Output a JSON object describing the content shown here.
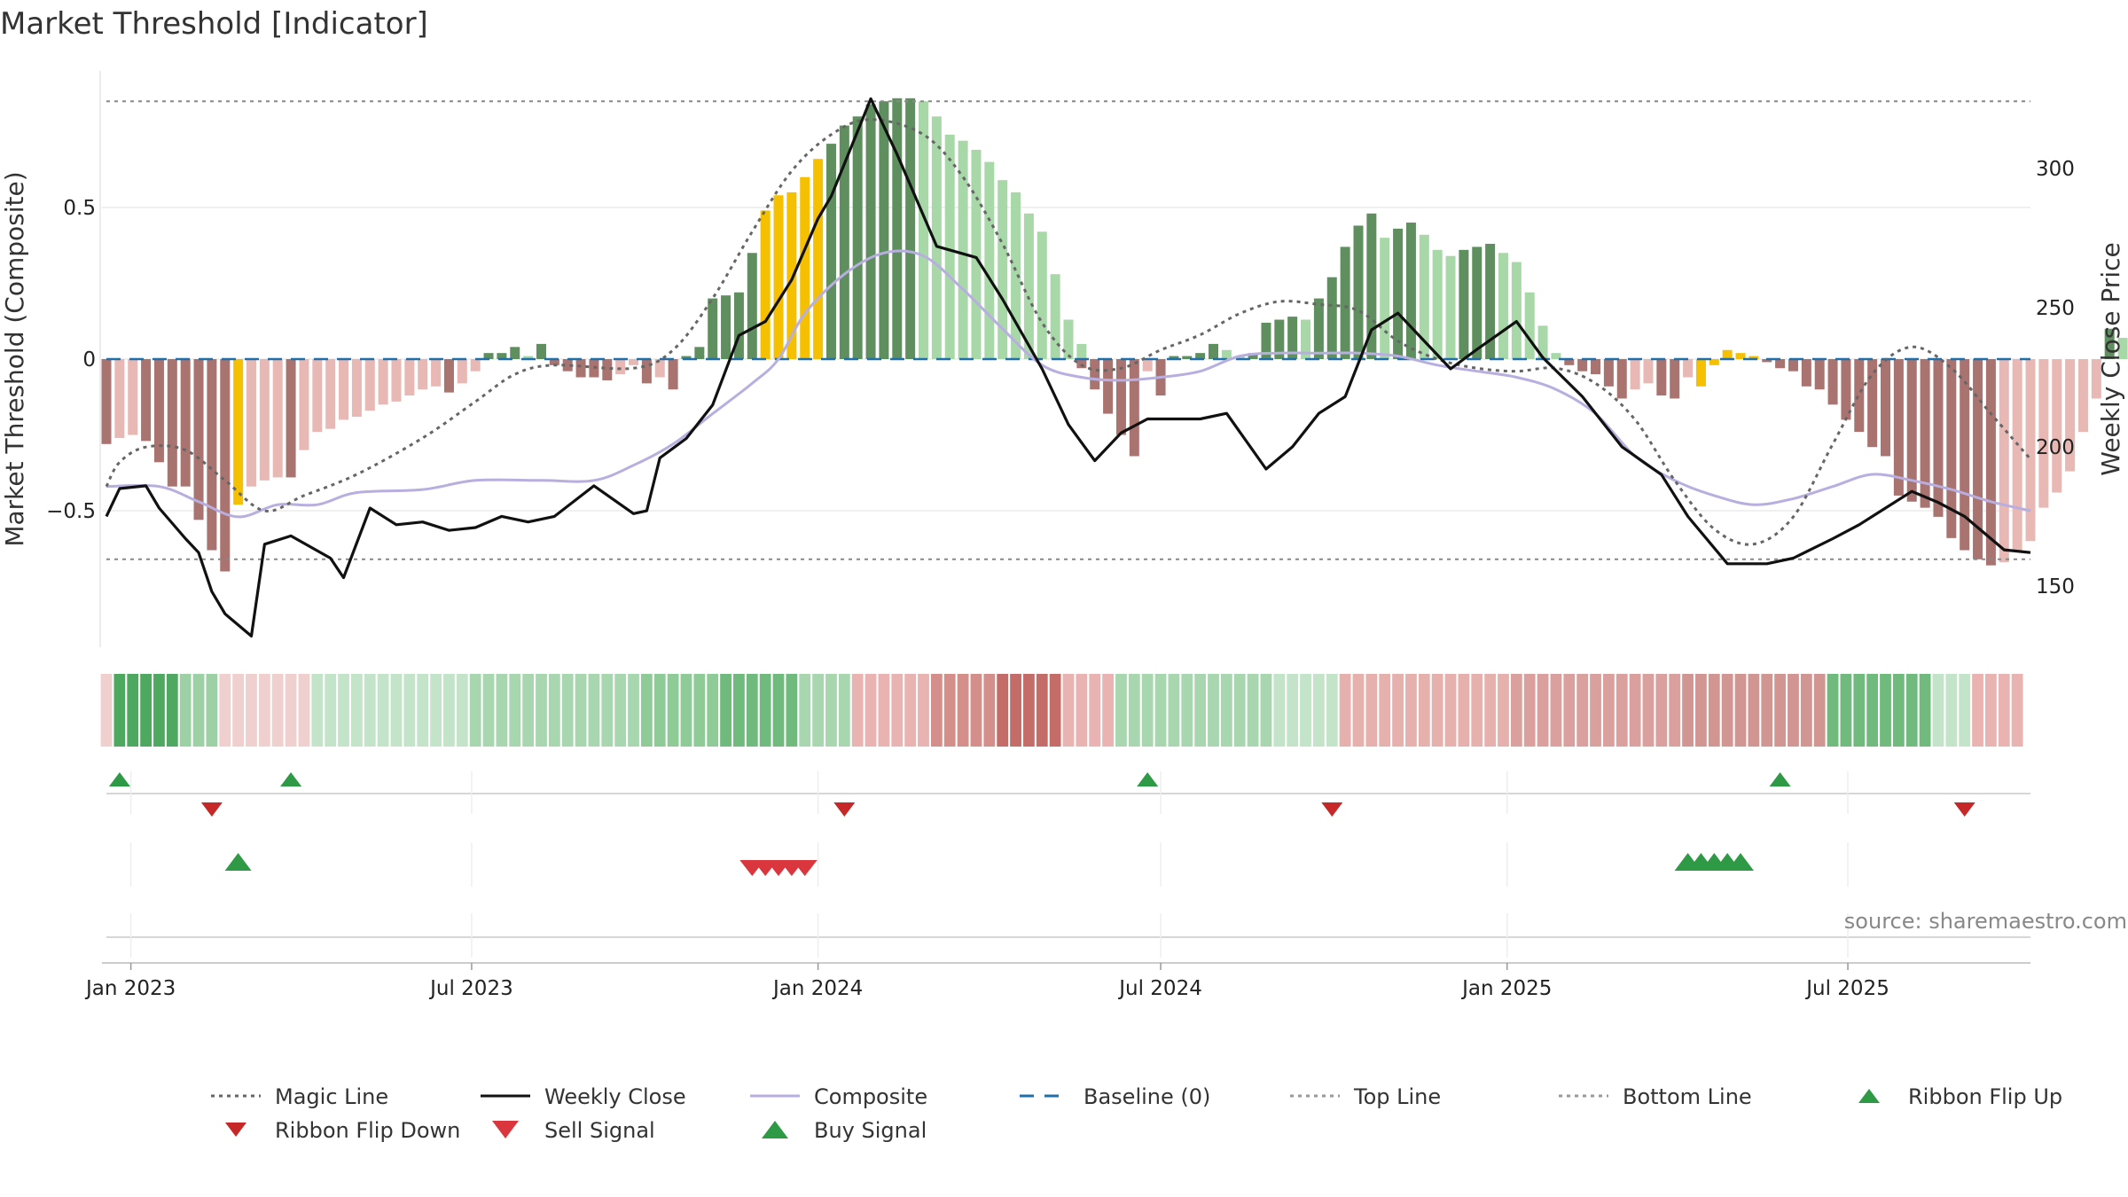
{
  "title": "Market Threshold [Indicator]",
  "source": "source: sharemaestro.com",
  "colors": {
    "bar_dark_green": "#5f8f5f",
    "bar_light_green": "#a8d8a8",
    "bar_dark_red": "#a97370",
    "bar_light_red": "#e8b8b4",
    "bar_extreme": "#f5c000",
    "weekly_close": "#111111",
    "composite": "#b8aee0",
    "magic": "#666666",
    "baseline": "#1f6fa8",
    "threshold": "#888888",
    "buy": "#2e9a46",
    "sell": "#d9363e"
  },
  "chart_data": {
    "type": "bar",
    "title": "Market Threshold [Indicator]",
    "ylabel_left": "Market Threshold (Composite)",
    "ylabel_right": "Weekly Close Price",
    "ylim_left": [
      -0.95,
      0.95
    ],
    "ylim_right": [
      128,
      335
    ],
    "yticks_left": [
      {
        "v": 0.5,
        "label": "0.5"
      },
      {
        "v": 0,
        "label": "0"
      },
      {
        "v": -0.5,
        "label": "−0.5"
      }
    ],
    "yticks_right": [
      {
        "v": 300,
        "label": "300"
      },
      {
        "v": 250,
        "label": "250"
      },
      {
        "v": 200,
        "label": "200"
      },
      {
        "v": 150,
        "label": "150"
      }
    ],
    "top_line": 0.85,
    "bottom_line": -0.66,
    "x_start": "2022-12-19",
    "x_end": "2025-10-06",
    "xticks": [
      {
        "date": "2023-01-01",
        "label": "Jan 2023"
      },
      {
        "date": "2023-07-01",
        "label": "Jul 2023"
      },
      {
        "date": "2024-01-01",
        "label": "Jan 2024"
      },
      {
        "date": "2024-07-01",
        "label": "Jul 2024"
      },
      {
        "date": "2025-01-01",
        "label": "Jan 2025"
      },
      {
        "date": "2025-07-01",
        "label": "Jul 2025"
      }
    ],
    "weekly_close_anchors": [
      [
        "2022-12-19",
        175
      ],
      [
        "2022-12-26",
        185
      ],
      [
        "2023-01-09",
        186
      ],
      [
        "2023-01-16",
        178
      ],
      [
        "2023-01-30",
        167
      ],
      [
        "2023-02-06",
        162
      ],
      [
        "2023-02-13",
        148
      ],
      [
        "2023-02-20",
        140
      ],
      [
        "2023-03-06",
        132
      ],
      [
        "2023-03-13",
        165
      ],
      [
        "2023-03-27",
        168
      ],
      [
        "2023-04-17",
        160
      ],
      [
        "2023-04-24",
        153
      ],
      [
        "2023-05-08",
        178
      ],
      [
        "2023-05-22",
        172
      ],
      [
        "2023-06-05",
        173
      ],
      [
        "2023-06-19",
        170
      ],
      [
        "2023-07-03",
        171
      ],
      [
        "2023-07-17",
        175
      ],
      [
        "2023-07-31",
        173
      ],
      [
        "2023-08-14",
        175
      ],
      [
        "2023-09-04",
        186
      ],
      [
        "2023-09-25",
        176
      ],
      [
        "2023-10-02",
        177
      ],
      [
        "2023-10-09",
        196
      ],
      [
        "2023-10-23",
        203
      ],
      [
        "2023-11-06",
        215
      ],
      [
        "2023-11-20",
        240
      ],
      [
        "2023-12-04",
        245
      ],
      [
        "2023-12-18",
        260
      ],
      [
        "2024-01-01",
        282
      ],
      [
        "2024-01-08",
        290
      ],
      [
        "2024-01-29",
        325
      ],
      [
        "2024-02-12",
        305
      ],
      [
        "2024-03-04",
        272
      ],
      [
        "2024-03-25",
        268
      ],
      [
        "2024-04-08",
        253
      ],
      [
        "2024-04-29",
        228
      ],
      [
        "2024-05-13",
        208
      ],
      [
        "2024-05-27",
        195
      ],
      [
        "2024-06-10",
        205
      ],
      [
        "2024-06-24",
        210
      ],
      [
        "2024-07-08",
        210
      ],
      [
        "2024-07-22",
        210
      ],
      [
        "2024-08-05",
        212
      ],
      [
        "2024-08-26",
        192
      ],
      [
        "2024-09-09",
        200
      ],
      [
        "2024-09-23",
        212
      ],
      [
        "2024-10-07",
        218
      ],
      [
        "2024-10-21",
        242
      ],
      [
        "2024-11-04",
        248
      ],
      [
        "2024-11-18",
        238
      ],
      [
        "2024-12-02",
        228
      ],
      [
        "2024-12-16",
        235
      ],
      [
        "2025-01-06",
        245
      ],
      [
        "2025-01-20",
        232
      ],
      [
        "2025-02-10",
        218
      ],
      [
        "2025-03-03",
        200
      ],
      [
        "2025-03-24",
        190
      ],
      [
        "2025-04-07",
        175
      ],
      [
        "2025-04-28",
        158
      ],
      [
        "2025-05-19",
        158
      ],
      [
        "2025-06-02",
        160
      ],
      [
        "2025-06-23",
        167
      ],
      [
        "2025-07-07",
        172
      ],
      [
        "2025-07-21",
        178
      ],
      [
        "2025-08-04",
        184
      ],
      [
        "2025-08-18",
        180
      ],
      [
        "2025-09-01",
        175
      ],
      [
        "2025-09-22",
        163
      ],
      [
        "2025-10-06",
        162
      ]
    ],
    "composite_anchors": [
      [
        "2022-12-19",
        -0.42
      ],
      [
        "2023-01-16",
        -0.42
      ],
      [
        "2023-02-06",
        -0.47
      ],
      [
        "2023-02-27",
        -0.52
      ],
      [
        "2023-03-20",
        -0.48
      ],
      [
        "2023-04-10",
        -0.48
      ],
      [
        "2023-05-01",
        -0.44
      ],
      [
        "2023-06-05",
        -0.43
      ],
      [
        "2023-07-03",
        -0.4
      ],
      [
        "2023-08-07",
        -0.4
      ],
      [
        "2023-09-04",
        -0.4
      ],
      [
        "2023-09-25",
        -0.35
      ],
      [
        "2023-10-16",
        -0.28
      ],
      [
        "2023-11-06",
        -0.18
      ],
      [
        "2023-11-27",
        -0.08
      ],
      [
        "2023-12-11",
        0.0
      ],
      [
        "2023-12-25",
        0.15
      ],
      [
        "2024-01-15",
        0.28
      ],
      [
        "2024-02-05",
        0.35
      ],
      [
        "2024-02-26",
        0.34
      ],
      [
        "2024-03-18",
        0.23
      ],
      [
        "2024-04-08",
        0.1
      ],
      [
        "2024-04-29",
        -0.02
      ],
      [
        "2024-05-20",
        -0.06
      ],
      [
        "2024-06-10",
        -0.07
      ],
      [
        "2024-07-01",
        -0.06
      ],
      [
        "2024-07-22",
        -0.04
      ],
      [
        "2024-08-12",
        0.01
      ],
      [
        "2024-09-02",
        0.02
      ],
      [
        "2024-09-23",
        0.02
      ],
      [
        "2024-10-14",
        0.02
      ],
      [
        "2024-11-04",
        0.01
      ],
      [
        "2024-11-25",
        -0.02
      ],
      [
        "2024-12-16",
        -0.04
      ],
      [
        "2025-01-06",
        -0.06
      ],
      [
        "2025-01-27",
        -0.1
      ],
      [
        "2025-02-17",
        -0.18
      ],
      [
        "2025-03-10",
        -0.32
      ],
      [
        "2025-03-31",
        -0.4
      ],
      [
        "2025-04-21",
        -0.45
      ],
      [
        "2025-05-12",
        -0.48
      ],
      [
        "2025-06-02",
        -0.46
      ],
      [
        "2025-06-23",
        -0.42
      ],
      [
        "2025-07-14",
        -0.38
      ],
      [
        "2025-08-04",
        -0.4
      ],
      [
        "2025-08-25",
        -0.43
      ],
      [
        "2025-09-15",
        -0.47
      ],
      [
        "2025-10-06",
        -0.5
      ]
    ],
    "magic_anchors": [
      [
        "2022-12-19",
        -0.42
      ],
      [
        "2022-12-26",
        -0.34
      ],
      [
        "2023-01-09",
        -0.29
      ],
      [
        "2023-01-30",
        -0.3
      ],
      [
        "2023-02-20",
        -0.4
      ],
      [
        "2023-03-13",
        -0.5
      ],
      [
        "2023-04-03",
        -0.45
      ],
      [
        "2023-05-01",
        -0.38
      ],
      [
        "2023-06-05",
        -0.26
      ],
      [
        "2023-07-03",
        -0.14
      ],
      [
        "2023-07-24",
        -0.05
      ],
      [
        "2023-08-14",
        -0.02
      ],
      [
        "2023-09-25",
        -0.03
      ],
      [
        "2023-10-16",
        0.03
      ],
      [
        "2023-11-06",
        0.2
      ],
      [
        "2023-11-27",
        0.42
      ],
      [
        "2023-12-18",
        0.62
      ],
      [
        "2024-01-08",
        0.74
      ],
      [
        "2024-01-29",
        0.79
      ],
      [
        "2024-02-26",
        0.74
      ],
      [
        "2024-03-18",
        0.6
      ],
      [
        "2024-04-08",
        0.38
      ],
      [
        "2024-04-29",
        0.12
      ],
      [
        "2024-05-20",
        -0.02
      ],
      [
        "2024-06-10",
        -0.03
      ],
      [
        "2024-07-01",
        0.03
      ],
      [
        "2024-07-22",
        0.08
      ],
      [
        "2024-08-12",
        0.15
      ],
      [
        "2024-09-02",
        0.19
      ],
      [
        "2024-09-23",
        0.18
      ],
      [
        "2024-10-14",
        0.16
      ],
      [
        "2024-11-04",
        0.06
      ],
      [
        "2024-11-25",
        0.0
      ],
      [
        "2024-12-16",
        -0.03
      ],
      [
        "2025-01-06",
        -0.04
      ],
      [
        "2025-01-27",
        -0.03
      ],
      [
        "2025-02-17",
        -0.08
      ],
      [
        "2025-03-10",
        -0.2
      ],
      [
        "2025-03-31",
        -0.4
      ],
      [
        "2025-04-21",
        -0.56
      ],
      [
        "2025-05-12",
        -0.61
      ],
      [
        "2025-06-02",
        -0.52
      ],
      [
        "2025-06-23",
        -0.28
      ],
      [
        "2025-07-14",
        -0.05
      ],
      [
        "2025-08-04",
        0.04
      ],
      [
        "2025-08-25",
        -0.03
      ],
      [
        "2025-09-15",
        -0.18
      ],
      [
        "2025-10-06",
        -0.33
      ]
    ],
    "bar_segments": [
      {
        "from": "2022-12-19",
        "values": [
          -0.28,
          -0.26,
          -0.25,
          -0.27,
          -0.34,
          -0.42,
          -0.42,
          -0.53,
          -0.63,
          -0.7,
          -0.48,
          -0.42,
          -0.4,
          -0.39,
          -0.39,
          -0.3,
          -0.24,
          -0.23,
          -0.2,
          -0.19,
          -0.17,
          -0.15,
          -0.14,
          -0.12,
          -0.1,
          -0.09,
          -0.11,
          -0.08,
          -0.04,
          0.02,
          0.02,
          0.04,
          0.01,
          0.05,
          -0.02,
          -0.04,
          -0.06,
          -0.06,
          -0.07,
          -0.05,
          -0.02,
          -0.08,
          -0.06,
          -0.1,
          0.01,
          0.04,
          0.2,
          0.21,
          0.22,
          0.35,
          0.49,
          0.54,
          0.55,
          0.6,
          0.66,
          0.71,
          0.77,
          0.8,
          0.84,
          0.85,
          0.86,
          0.86,
          0.85,
          0.8,
          0.74,
          0.72,
          0.69,
          0.65,
          0.59,
          0.55,
          0.48,
          0.42,
          0.28,
          0.13,
          0.05
        ]
      },
      {
        "from": "2024-05-20",
        "values": [
          -0.03,
          -0.1,
          -0.18,
          -0.25,
          -0.32,
          -0.04,
          -0.12,
          0.01,
          0.01,
          0.02,
          0.05,
          0.03,
          0.01,
          0.02,
          0.12,
          0.13,
          0.14,
          0.13,
          0.2,
          0.27,
          0.37,
          0.44,
          0.48,
          0.4,
          0.43,
          0.45,
          0.41,
          0.36,
          0.34,
          0.36,
          0.37,
          0.38,
          0.35,
          0.32,
          0.22,
          0.11,
          0.02,
          -0.02,
          -0.04,
          -0.05,
          -0.09,
          -0.13,
          -0.1,
          -0.08,
          -0.12,
          -0.13,
          -0.06,
          -0.09,
          -0.02,
          0.03,
          0.02,
          0.01,
          -0.01,
          -0.03,
          -0.04,
          -0.09,
          -0.1,
          -0.15,
          -0.2,
          -0.24,
          -0.29,
          -0.32,
          -0.45,
          -0.47,
          -0.49,
          -0.52,
          -0.59,
          -0.63,
          -0.66,
          -0.68,
          -0.67,
          -0.63,
          -0.6,
          -0.49,
          -0.44,
          -0.37,
          -0.24,
          -0.13,
          0.1,
          0.07,
          0.04,
          0.02,
          0.03,
          0.08,
          0.06,
          0.03,
          -0.04,
          -0.15,
          -0.16,
          -0.2,
          -0.26,
          -0.34,
          -0.4,
          -0.44,
          -0.45
        ]
      }
    ],
    "extreme_bar_dates": [
      "2023-02-27",
      "2023-12-04",
      "2023-12-11",
      "2023-12-18",
      "2023-12-25",
      "2024-01-01",
      "2025-04-14",
      "2025-04-21",
      "2025-04-28",
      "2025-05-05",
      "2025-05-12"
    ],
    "ribbon": [
      {
        "from": "2022-12-19",
        "to": "2022-12-26",
        "color": "#f0cfcf"
      },
      {
        "from": "2022-12-26",
        "to": "2023-01-30",
        "color": "#4fa85f"
      },
      {
        "from": "2023-01-30",
        "to": "2023-02-20",
        "color": "#9dd0a5"
      },
      {
        "from": "2023-02-20",
        "to": "2023-04-10",
        "color": "#f0cfcf"
      },
      {
        "from": "2023-04-10",
        "to": "2023-07-03",
        "color": "#c3e4c8"
      },
      {
        "from": "2023-07-03",
        "to": "2023-10-02",
        "color": "#a8d6af"
      },
      {
        "from": "2023-10-02",
        "to": "2023-11-13",
        "color": "#8fcb97"
      },
      {
        "from": "2023-11-13",
        "to": "2023-12-25",
        "color": "#6fba7c"
      },
      {
        "from": "2023-12-25",
        "to": "2024-01-22",
        "color": "#a8d6af"
      },
      {
        "from": "2024-01-22",
        "to": "2024-03-04",
        "color": "#e8b3b0"
      },
      {
        "from": "2024-03-04",
        "to": "2024-04-08",
        "color": "#d58f8b"
      },
      {
        "from": "2024-04-08",
        "to": "2024-05-13",
        "color": "#c46c68"
      },
      {
        "from": "2024-05-13",
        "to": "2024-06-10",
        "color": "#e8b3b0"
      },
      {
        "from": "2024-06-10",
        "to": "2024-09-02",
        "color": "#a8d6af"
      },
      {
        "from": "2024-09-02",
        "to": "2024-10-07",
        "color": "#c3e4c8"
      },
      {
        "from": "2024-10-07",
        "to": "2025-01-06",
        "color": "#e6b0ad"
      },
      {
        "from": "2025-01-06",
        "to": "2025-04-07",
        "color": "#d9a09d"
      },
      {
        "from": "2025-04-07",
        "to": "2025-06-23",
        "color": "#d19592"
      },
      {
        "from": "2025-06-23",
        "to": "2025-08-18",
        "color": "#6fba7c"
      },
      {
        "from": "2025-08-18",
        "to": "2025-09-08",
        "color": "#c3e4c8"
      },
      {
        "from": "2025-09-08",
        "to": "2025-10-06",
        "color": "#e8b3b0"
      }
    ],
    "ribbon_flip_up": [
      "2022-12-26",
      "2023-03-27",
      "2024-06-24",
      "2025-05-26"
    ],
    "ribbon_flip_down": [
      "2023-02-13",
      "2024-01-15",
      "2024-09-30",
      "2025-09-01"
    ],
    "sell_signal": [
      "2023-11-27",
      "2023-12-04",
      "2023-12-11",
      "2023-12-18",
      "2023-12-25"
    ],
    "buy_signal": [
      "2023-02-27",
      "2025-04-07",
      "2025-04-14",
      "2025-04-21",
      "2025-04-28",
      "2025-05-05"
    ],
    "legend": [
      {
        "label": "Magic Line",
        "kind": "dotted",
        "color": "#666666"
      },
      {
        "label": "Weekly Close",
        "kind": "solid",
        "color": "#111111"
      },
      {
        "label": "Composite",
        "kind": "solid",
        "color": "#b8aee0"
      },
      {
        "label": "Baseline (0)",
        "kind": "dashed",
        "color": "#1f6fa8"
      },
      {
        "label": "Top Line",
        "kind": "dotted",
        "color": "#999999"
      },
      {
        "label": "Bottom Line",
        "kind": "dotted",
        "color": "#999999"
      },
      {
        "label": "Ribbon Flip Up",
        "kind": "tri-up-small",
        "color": "#2e9a46"
      },
      {
        "label": "Ribbon Flip Down",
        "kind": "tri-down-small",
        "color": "#c62828"
      },
      {
        "label": "Sell Signal",
        "kind": "tri-down",
        "color": "#d9363e"
      },
      {
        "label": "Buy Signal",
        "kind": "tri-up",
        "color": "#2e9a46"
      }
    ]
  }
}
